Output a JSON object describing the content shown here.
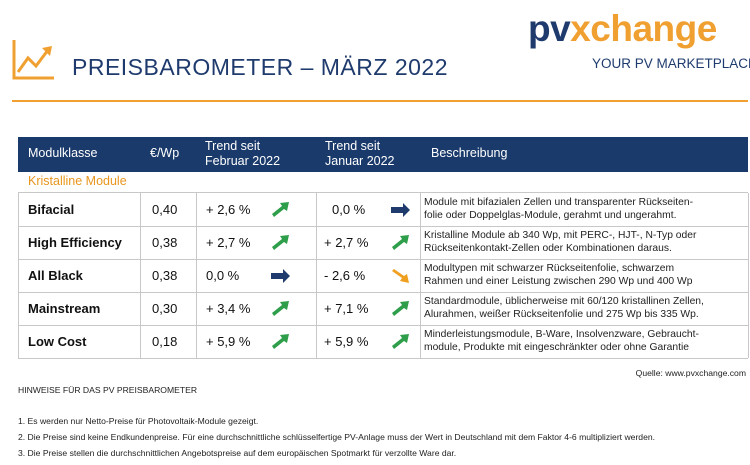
{
  "header": {
    "title": "PREISBAROMETER –  MÄRZ 2022",
    "logo": {
      "pv": "pv",
      "x": "x",
      "change": "change"
    },
    "tagline": "YOUR PV MARKETPLACE"
  },
  "table": {
    "columns": [
      "Modulklasse",
      "€/Wp",
      [
        "Trend seit",
        "Februar 2022"
      ],
      [
        "Trend seit",
        "Januar 2022"
      ],
      "Beschreibung"
    ],
    "section": "Kristalline Module",
    "rows": [
      [
        "Bifacial",
        "0,40",
        "+ 2,6 %",
        "0,0 %",
        [
          "Module mit bifazialen Zellen und transparenter Rückseiten-",
          "folie oder Doppelglas-Module, gerahmt und ungerahmt."
        ]
      ],
      [
        "High Efficiency",
        "0,38",
        "+ 2,7 %",
        "+ 2,7 %",
        [
          "Kristalline Module ab 340 Wp, mit PERC-, HJT-, N-Typ oder",
          "Rückseitenkontakt-Zellen oder Kombinationen daraus."
        ]
      ],
      [
        "All Black",
        "0,38",
        "0,0 %",
        "- 2,6 %",
        [
          "Modultypen mit schwarzer Rückseitenfolie, schwarzem",
          "Rahmen und einer Leistung  zwischen 290 Wp und 400 Wp"
        ]
      ],
      [
        "Mainstream",
        "0,30",
        "+ 3,4 %",
        "+ 7,1 %",
        [
          "Standardmodule, üblicherweise mit 60/120 kristallinen Zellen,",
          "Alurahmen, weißer Rückseitenfolie und 275 Wp bis 335 Wp."
        ]
      ],
      [
        "Low Cost",
        "0,18",
        "+ 5,9 %",
        "+ 5,9 %",
        [
          "Minderleistungsmodule, B-Ware, Insolvenzware, Gebraucht-",
          "module, Produkte mit eingeschränkter oder ohne Garantie"
        ]
      ]
    ]
  },
  "source": "Quelle: www.pvxchange.com",
  "notes": {
    "title": "HINWEISE FÜR DAS PV PREISBAROMETER",
    "items": [
      "1.  Es werden nur Netto-Preise für Photovoltaik-Module gezeigt.",
      "2. Die Preise sind keine Endkundenpreise. Für eine durchschnittliche schlüsselfertige PV-Anlage muss der Wert in Deutschland mit dem Faktor 4-6 multipliziert werden.",
      "3. Die Preise stellen die durchschnittlichen Angebotspreise auf dem europäischen Spotmarkt für verzollte Ware dar."
    ]
  }
}
